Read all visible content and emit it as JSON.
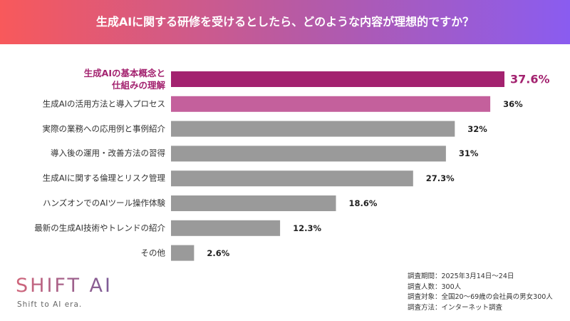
{
  "chart_data": {
    "type": "bar",
    "orientation": "horizontal",
    "title": "生成AIに関する研修を受けるとしたら、どのような内容が理想的ですか？",
    "categories": [
      "生成AIの基本概念と\n仕組みの理解",
      "生成AIの活用方法と導入プロセス",
      "実際の業務への応用例と事例紹介",
      "導入後の運用・改善方法の習得",
      "生成AIに関する倫理とリスク管理",
      "ハンズオンでのAIツール操作体験",
      "最新の生成AI技術やトレンドの紹介",
      "その他"
    ],
    "values": [
      37.6,
      36,
      32,
      31,
      27.3,
      18.6,
      12.3,
      2.6
    ],
    "value_labels": [
      "37.6%",
      "36%",
      "32%",
      "31%",
      "27.3%",
      "18.6%",
      "12.3%",
      "2.6%"
    ],
    "colors": [
      "#a3226f",
      "#c4609c",
      "#9a9a9a",
      "#9a9a9a",
      "#9a9a9a",
      "#9a9a9a",
      "#9a9a9a",
      "#9a9a9a"
    ]
  },
  "logo": {
    "name": "SHIFT AI",
    "tagline": "Shift to AI era."
  },
  "notes": [
    "調査期間：2025年3月14日〜24日",
    "調査人数：300人",
    "調査対象：全国20〜69歳の会社員の男女300人",
    "調査方法：インターネット調査"
  ]
}
